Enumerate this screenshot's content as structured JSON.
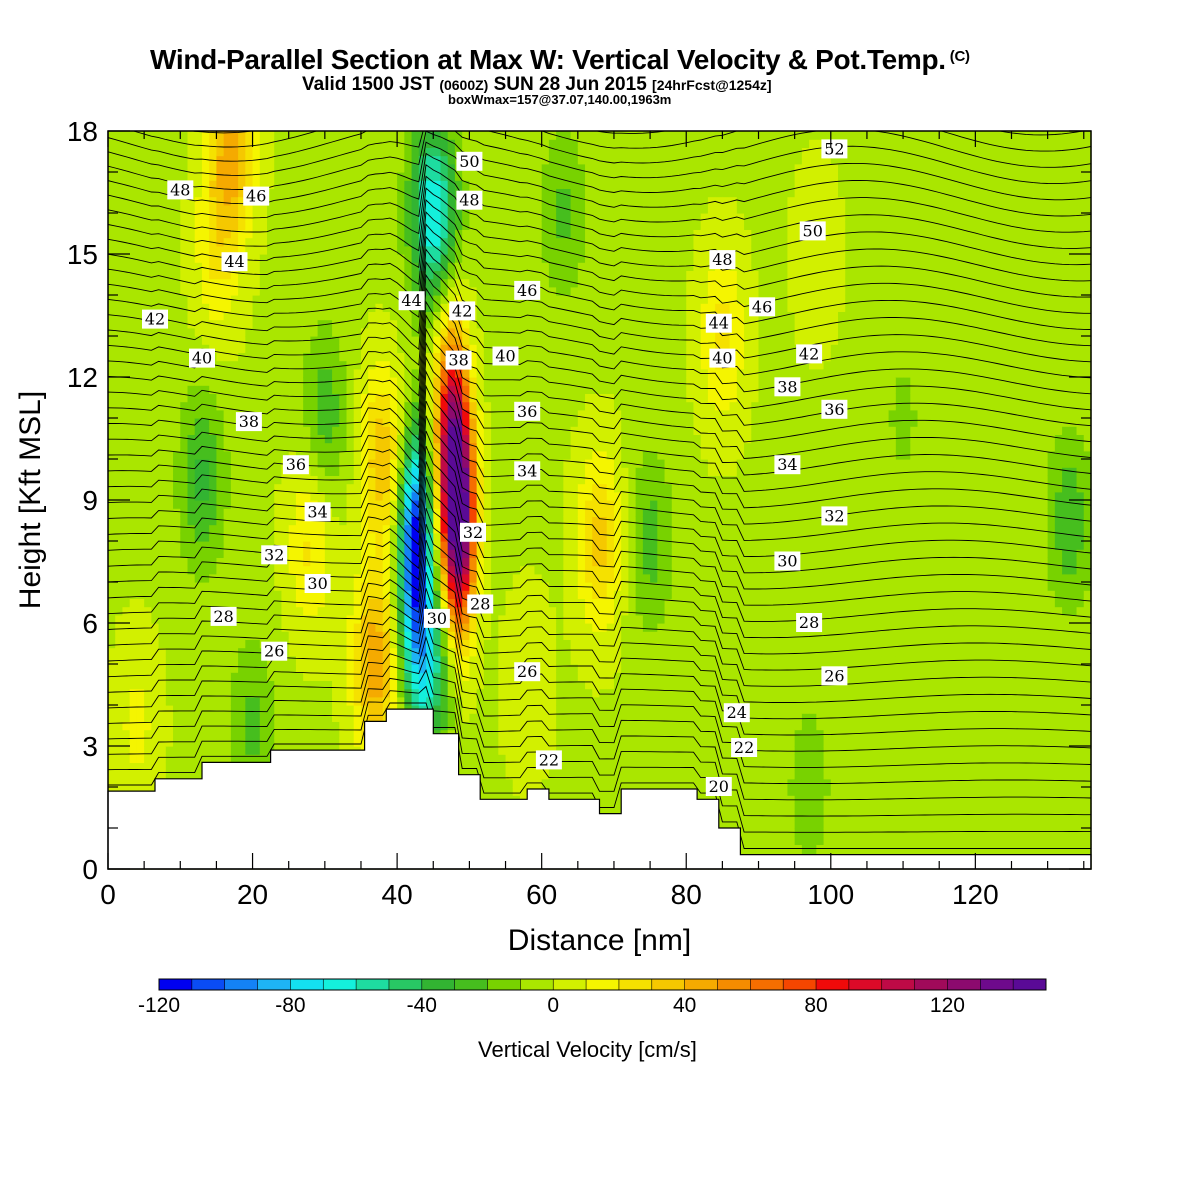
{
  "header": {
    "title": "Wind-Parallel Section at Max W: Vertical Velocity & Pot.Temp.",
    "copyright": "(C)",
    "valid_prefix": "Valid 1500 JST",
    "valid_utc": "(0600Z)",
    "valid_date": "SUN 28 Jun 2015",
    "forecast": "[24hrFcst@1254z]",
    "box_info": "boxWmax=157@37.07,140.00,1963m"
  },
  "chart_data": {
    "type": "heatmap",
    "xlabel": "Distance [nm]",
    "ylabel": "Height [Kft MSL]",
    "xlim": [
      0,
      136
    ],
    "ylim": [
      0,
      18
    ],
    "x_ticks": [
      "0",
      "20",
      "40",
      "60",
      "80",
      "100",
      "120"
    ],
    "y_ticks": [
      "0",
      "3",
      "6",
      "9",
      "12",
      "15",
      "18"
    ],
    "colorbar": {
      "title": "Vertical Velocity [cm/s]",
      "range": [
        -120,
        150
      ],
      "step": 10,
      "tick_labels": [
        "-120",
        "-80",
        "-40",
        "0",
        "40",
        "80",
        "120"
      ],
      "tick_values": [
        -120,
        -80,
        -40,
        0,
        40,
        80,
        120
      ],
      "colors": [
        "#0000f0",
        "#0a4cf5",
        "#1482f5",
        "#1eb4f5",
        "#14e0f0",
        "#14f0dc",
        "#1edca0",
        "#28c864",
        "#32b432",
        "#46be1e",
        "#78d200",
        "#aae600",
        "#d2f000",
        "#f5f500",
        "#f5e100",
        "#f5c800",
        "#f5aa00",
        "#f58c00",
        "#f56e00",
        "#f54600",
        "#f00a0a",
        "#dc0a28",
        "#be0a46",
        "#a00a5a",
        "#8c0a6e",
        "#6e0a8c",
        "#5a0a96"
      ]
    },
    "background_w": -2,
    "w_features": [
      {
        "x": 48.5,
        "y": 8.5,
        "w": 157
      },
      {
        "x": 47.5,
        "y": 11,
        "w": 85
      },
      {
        "x": 42.5,
        "y": 8,
        "w": -115
      },
      {
        "x": 45,
        "y": 16,
        "w": -70
      },
      {
        "x": 44,
        "y": 5,
        "w": -60
      },
      {
        "x": 38,
        "y": 10,
        "w": 40
      },
      {
        "x": 37,
        "y": 5,
        "w": 50
      },
      {
        "x": 28,
        "y": 8,
        "w": 25
      },
      {
        "x": 17,
        "y": 17.5,
        "w": 45
      },
      {
        "x": 15,
        "y": 15,
        "w": 20
      },
      {
        "x": 68,
        "y": 8,
        "w": 35
      },
      {
        "x": 13,
        "y": 9.5,
        "w": -30
      },
      {
        "x": 30,
        "y": 11,
        "w": -25
      },
      {
        "x": 20,
        "y": 3.5,
        "w": -20
      },
      {
        "x": 58,
        "y": 4.5,
        "w": 12
      },
      {
        "x": 75,
        "y": 8,
        "w": -22
      },
      {
        "x": 63,
        "y": 16,
        "w": -20
      },
      {
        "x": 97,
        "y": 2,
        "w": -15
      },
      {
        "x": 133,
        "y": 8.5,
        "w": -25
      },
      {
        "x": 110,
        "y": 11,
        "w": -10
      },
      {
        "x": 98,
        "y": 15,
        "w": 10
      },
      {
        "x": 85,
        "y": 13,
        "w": 25
      },
      {
        "x": 4,
        "y": 3.5,
        "w": 15
      }
    ],
    "terrain": [
      {
        "x": 0,
        "y": 1.9
      },
      {
        "x": 6.5,
        "y": 1.9
      },
      {
        "x": 6.5,
        "y": 2.2
      },
      {
        "x": 13,
        "y": 2.2
      },
      {
        "x": 13,
        "y": 2.6
      },
      {
        "x": 22.5,
        "y": 2.6
      },
      {
        "x": 22.5,
        "y": 2.9
      },
      {
        "x": 35.5,
        "y": 2.9
      },
      {
        "x": 35.5,
        "y": 3.6
      },
      {
        "x": 38.5,
        "y": 3.6
      },
      {
        "x": 38.5,
        "y": 3.9
      },
      {
        "x": 45,
        "y": 3.9
      },
      {
        "x": 45,
        "y": 3.3
      },
      {
        "x": 48.5,
        "y": 3.3
      },
      {
        "x": 48.5,
        "y": 2.3
      },
      {
        "x": 51.5,
        "y": 2.3
      },
      {
        "x": 51.5,
        "y": 1.7
      },
      {
        "x": 58,
        "y": 1.7
      },
      {
        "x": 58,
        "y": 1.95
      },
      {
        "x": 61,
        "y": 1.95
      },
      {
        "x": 61,
        "y": 1.7
      },
      {
        "x": 68,
        "y": 1.7
      },
      {
        "x": 68,
        "y": 1.35
      },
      {
        "x": 71,
        "y": 1.35
      },
      {
        "x": 71,
        "y": 1.95
      },
      {
        "x": 81.5,
        "y": 1.95
      },
      {
        "x": 81.5,
        "y": 1.7
      },
      {
        "x": 84.5,
        "y": 1.7
      },
      {
        "x": 84.5,
        "y": 1.0
      },
      {
        "x": 87.5,
        "y": 1.0
      },
      {
        "x": 87.5,
        "y": 0.35
      },
      {
        "x": 136,
        "y": 0.35
      }
    ],
    "isotherm_labels": [
      {
        "text": "52",
        "x": 100.5,
        "y": 17.55
      },
      {
        "text": "50",
        "x": 50,
        "y": 17.25
      },
      {
        "text": "48",
        "x": 10,
        "y": 16.55
      },
      {
        "text": "46",
        "x": 20.5,
        "y": 16.4
      },
      {
        "text": "48",
        "x": 50,
        "y": 16.3
      },
      {
        "text": "50",
        "x": 97.5,
        "y": 15.55
      },
      {
        "text": "48",
        "x": 85,
        "y": 14.85
      },
      {
        "text": "44",
        "x": 17.5,
        "y": 14.8
      },
      {
        "text": "46",
        "x": 58,
        "y": 14.1
      },
      {
        "text": "44",
        "x": 42,
        "y": 13.85
      },
      {
        "text": "46",
        "x": 90.5,
        "y": 13.7
      },
      {
        "text": "42",
        "x": 49,
        "y": 13.6
      },
      {
        "text": "42",
        "x": 6.5,
        "y": 13.4
      },
      {
        "text": "44",
        "x": 84.5,
        "y": 13.3
      },
      {
        "text": "40",
        "x": 13,
        "y": 12.45
      },
      {
        "text": "42",
        "x": 97,
        "y": 12.55
      },
      {
        "text": "40",
        "x": 55,
        "y": 12.5
      },
      {
        "text": "38",
        "x": 48.5,
        "y": 12.4
      },
      {
        "text": "40",
        "x": 85,
        "y": 12.45
      },
      {
        "text": "38",
        "x": 94,
        "y": 11.75
      },
      {
        "text": "36",
        "x": 58,
        "y": 11.15
      },
      {
        "text": "36",
        "x": 100.5,
        "y": 11.2
      },
      {
        "text": "38",
        "x": 19.5,
        "y": 10.9
      },
      {
        "text": "36",
        "x": 26,
        "y": 9.85
      },
      {
        "text": "34",
        "x": 58,
        "y": 9.7
      },
      {
        "text": "34",
        "x": 94,
        "y": 9.85
      },
      {
        "text": "34",
        "x": 29,
        "y": 8.7
      },
      {
        "text": "32",
        "x": 100.5,
        "y": 8.6
      },
      {
        "text": "32",
        "x": 50.5,
        "y": 8.2
      },
      {
        "text": "32",
        "x": 23,
        "y": 7.65
      },
      {
        "text": "30",
        "x": 94,
        "y": 7.5
      },
      {
        "text": "30",
        "x": 29,
        "y": 6.95
      },
      {
        "text": "28",
        "x": 51.5,
        "y": 6.45
      },
      {
        "text": "28",
        "x": 16,
        "y": 6.15
      },
      {
        "text": "30",
        "x": 45.5,
        "y": 6.1
      },
      {
        "text": "28",
        "x": 97,
        "y": 6.0
      },
      {
        "text": "26",
        "x": 23,
        "y": 5.3
      },
      {
        "text": "26",
        "x": 58,
        "y": 4.8
      },
      {
        "text": "26",
        "x": 100.5,
        "y": 4.7
      },
      {
        "text": "24",
        "x": 87,
        "y": 3.8
      },
      {
        "text": "22",
        "x": 61,
        "y": 2.65
      },
      {
        "text": "22",
        "x": 88,
        "y": 2.95
      },
      {
        "text": "20",
        "x": 84.5,
        "y": 2.0
      }
    ]
  }
}
